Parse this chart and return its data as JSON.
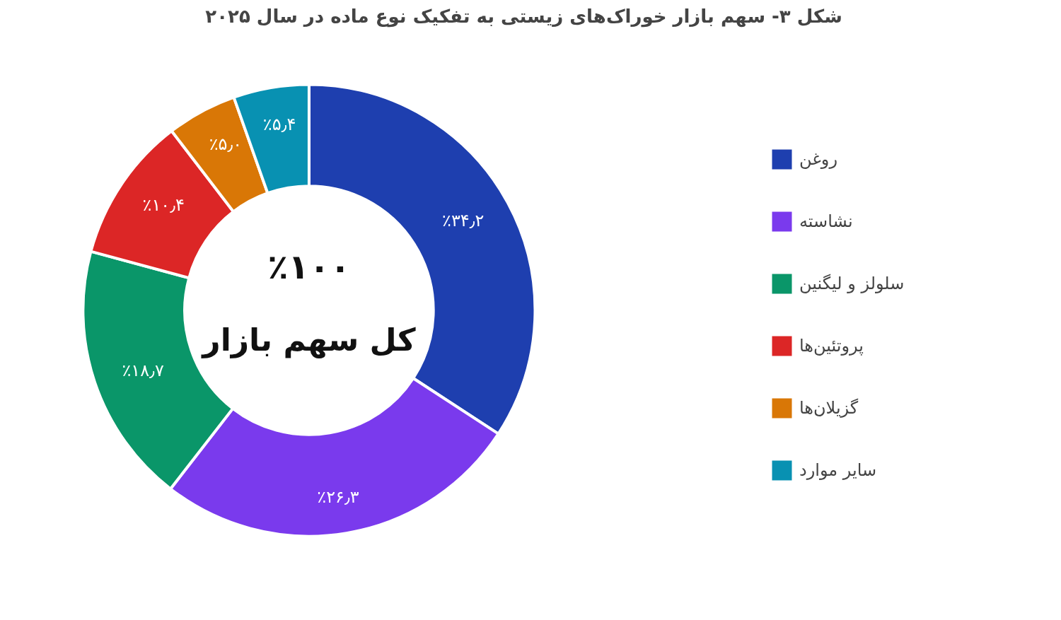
{
  "chart_data": {
    "type": "donut",
    "title": "شکل ۳- سهم بازار خوراک‌های زیستی به تفکیک نوع ماده در سال ۲۰۲۵",
    "categories": [
      "روغن",
      "نشاسته",
      "سلولز و لیگنین",
      "پروتئین‌ها",
      "گزیلان‌ها",
      "سایر موارد"
    ],
    "values": [
      34.2,
      26.3,
      18.7,
      10.4,
      5.0,
      5.4
    ],
    "colors": [
      "#1e3faf",
      "#7a3aed",
      "#0a9669",
      "#dc2626",
      "#d97706",
      "#0891b2"
    ],
    "value_labels": [
      "٪۳۴٫۲",
      "٪۲۶٫۳",
      "٪۱۸٫۷",
      "٪۱۰٫۴",
      "٪۵٫۰",
      "٪۵٫۴"
    ],
    "annotations": [
      "٪۱۰۰",
      "کل سهم بازار"
    ],
    "legend": "right"
  }
}
